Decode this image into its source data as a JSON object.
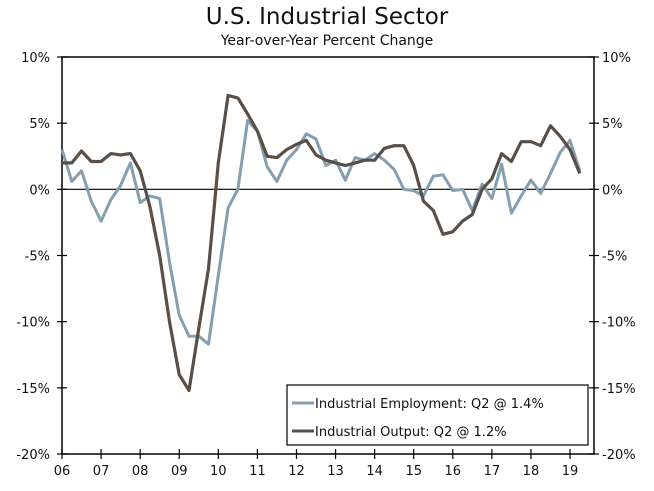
{
  "chart_data": {
    "type": "line",
    "title": "U.S. Industrial Sector",
    "subtitle": "Year-over-Year Percent Change",
    "xlabel": "",
    "ylabel": "",
    "ylim": [
      -20,
      10
    ],
    "yticks": [
      10,
      5,
      0,
      -5,
      -10,
      -15,
      -20
    ],
    "ytick_labels": [
      "10%",
      "5%",
      "0%",
      "-5%",
      "-10%",
      "-15%",
      "-20%"
    ],
    "xtick_labels": [
      "06",
      "07",
      "08",
      "09",
      "10",
      "11",
      "12",
      "13",
      "14",
      "15",
      "16",
      "17",
      "18",
      "19"
    ],
    "x": [
      "2006Q1",
      "2006Q2",
      "2006Q3",
      "2006Q4",
      "2007Q1",
      "2007Q2",
      "2007Q3",
      "2007Q4",
      "2008Q1",
      "2008Q2",
      "2008Q3",
      "2008Q4",
      "2009Q1",
      "2009Q2",
      "2009Q3",
      "2009Q4",
      "2010Q1",
      "2010Q2",
      "2010Q3",
      "2010Q4",
      "2011Q1",
      "2011Q2",
      "2011Q3",
      "2011Q4",
      "2012Q1",
      "2012Q2",
      "2012Q3",
      "2012Q4",
      "2013Q1",
      "2013Q2",
      "2013Q3",
      "2013Q4",
      "2014Q1",
      "2014Q2",
      "2014Q3",
      "2014Q4",
      "2015Q1",
      "2015Q2",
      "2015Q3",
      "2015Q4",
      "2016Q1",
      "2016Q2",
      "2016Q3",
      "2016Q4",
      "2017Q1",
      "2017Q2",
      "2017Q3",
      "2017Q4",
      "2018Q1",
      "2018Q2",
      "2018Q3",
      "2018Q4",
      "2019Q1",
      "2019Q2"
    ],
    "grid": false,
    "legend_position": "bottom-right",
    "series": [
      {
        "name": "Industrial Employment: Q2 @ 1.4%",
        "color": "#849fb0",
        "values": [
          3.0,
          0.6,
          1.4,
          -0.9,
          -2.4,
          -0.8,
          0.3,
          2.0,
          -1.0,
          -0.5,
          -0.7,
          -5.5,
          -9.5,
          -11.1,
          -11.1,
          -11.7,
          -6.5,
          -1.4,
          0.0,
          5.2,
          4.4,
          1.7,
          0.6,
          2.2,
          3.0,
          4.2,
          3.8,
          1.8,
          2.2,
          0.7,
          2.4,
          2.2,
          2.7,
          2.2,
          1.5,
          0.0,
          -0.1,
          -0.5,
          1.0,
          1.1,
          -0.1,
          0.0,
          -1.6,
          0.4,
          -0.7,
          1.9,
          -1.8,
          -0.5,
          0.7,
          -0.3,
          1.2,
          2.8,
          3.7,
          1.4
        ]
      },
      {
        "name": "Industrial Output: Q2 @ 1.2%",
        "color": "#5a4f47",
        "values": [
          2.0,
          2.0,
          2.9,
          2.1,
          2.1,
          2.7,
          2.6,
          2.7,
          1.4,
          -1.3,
          -5.0,
          -10.0,
          -14.0,
          -15.2,
          -10.5,
          -6.0,
          2.0,
          7.1,
          6.9,
          5.7,
          4.4,
          2.5,
          2.4,
          3.0,
          3.4,
          3.7,
          2.6,
          2.2,
          2.0,
          1.8,
          2.0,
          2.2,
          2.2,
          3.1,
          3.3,
          3.3,
          1.8,
          -0.9,
          -1.6,
          -3.4,
          -3.2,
          -2.4,
          -1.9,
          0.0,
          0.8,
          2.7,
          2.1,
          3.6,
          3.6,
          3.3,
          4.8,
          4.0,
          3.0,
          1.2
        ]
      }
    ]
  }
}
